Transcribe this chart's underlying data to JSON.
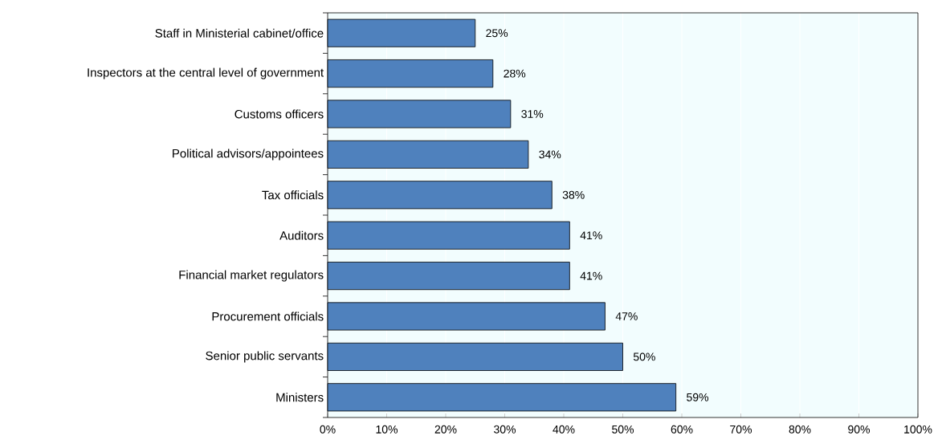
{
  "chart_data": {
    "type": "bar",
    "orientation": "horizontal",
    "categories": [
      "Staff in Ministerial cabinet/office",
      "Inspectors at the central level of government",
      "Customs officers",
      "Political advisors/appointees",
      "Tax officials",
      "Auditors",
      "Financial market regulators",
      "Procurement officials",
      "Senior public servants",
      "Ministers"
    ],
    "values": [
      25,
      28,
      31,
      34,
      38,
      41,
      41,
      47,
      50,
      59
    ],
    "value_labels": [
      "25%",
      "28%",
      "31%",
      "34%",
      "38%",
      "41%",
      "41%",
      "47%",
      "50%",
      "59%"
    ],
    "color": "#4f81bd",
    "xlim": [
      0,
      100
    ],
    "xticks": [
      {
        "value": 0,
        "label": "0%"
      },
      {
        "value": 10,
        "label": "10%"
      },
      {
        "value": 20,
        "label": "20%"
      },
      {
        "value": 30,
        "label": "30%"
      },
      {
        "value": 40,
        "label": "40%"
      },
      {
        "value": 50,
        "label": "50%"
      },
      {
        "value": 60,
        "label": "60%"
      },
      {
        "value": 70,
        "label": "70%"
      },
      {
        "value": 80,
        "label": "80%"
      },
      {
        "value": 90,
        "label": "90%"
      },
      {
        "value": 100,
        "label": "100%"
      }
    ],
    "grid": "x"
  }
}
